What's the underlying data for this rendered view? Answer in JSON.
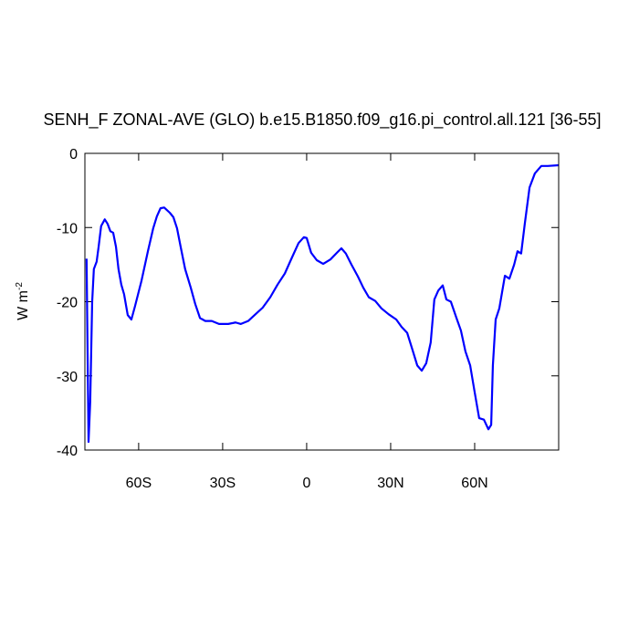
{
  "chart_data": {
    "type": "line",
    "title": "SENH_F ZONAL-AVE (GLO) b.e15.B1850.f09_g16.pi_control.all.121 [36-55]",
    "ylabel": "W m",
    "ylabel_sup": "-2",
    "xlim": [
      -79.2,
      90
    ],
    "ylim": [
      -40,
      0
    ],
    "xticks": [
      {
        "value": -60,
        "label": "60S"
      },
      {
        "value": -30,
        "label": "30S"
      },
      0,
      {
        "value": 30,
        "label": "30N"
      },
      {
        "value": 60,
        "label": "60N"
      }
    ],
    "yticks": [
      0,
      -10,
      -20,
      -30,
      -40
    ],
    "grid": false,
    "series": [
      {
        "name": "SENH_F",
        "color": "#0000ff",
        "x": [
          -78.6,
          -77.9,
          -77.3,
          -76.6,
          -76,
          -75,
          -74.3,
          -73.4,
          -72.1,
          -71.1,
          -70.1,
          -69.1,
          -68.1,
          -67.2,
          -66.2,
          -65.2,
          -63.9,
          -62.6,
          -61.3,
          -59,
          -56.7,
          -54.8,
          -53.5,
          -52.2,
          -50.9,
          -48.9,
          -47.6,
          -46.3,
          -45,
          -43.4,
          -41.4,
          -39.8,
          -38.1,
          -36.2,
          -33.9,
          -31.3,
          -28,
          -25.4,
          -23.5,
          -20.9,
          -18.3,
          -15.7,
          -13,
          -10.4,
          -7.8,
          -5.2,
          -2.9,
          -1,
          0,
          1.6,
          3.6,
          5.9,
          8.5,
          10.8,
          12.4,
          14,
          16,
          18.3,
          20.2,
          22.2,
          24.5,
          26.7,
          29.3,
          32,
          33.9,
          35.9,
          37.8,
          39.5,
          41.1,
          42.7,
          44.3,
          45.6,
          47,
          48.6,
          49.9,
          51.5,
          53.5,
          55.1,
          56.7,
          58.4,
          60,
          61.6,
          63.3,
          64.9,
          65.9,
          66.5,
          67.5,
          68.8,
          69.8,
          70.8,
          72.4,
          74.1,
          75.3,
          76.6,
          77.9,
          79.6,
          81.5,
          83.8,
          86.1,
          90
        ],
        "values": [
          -14.2,
          -38.9,
          -33.5,
          -20,
          -15.6,
          -14.6,
          -12.6,
          -9.8,
          -8.9,
          -9.5,
          -10.5,
          -10.7,
          -12.6,
          -15.6,
          -17.7,
          -19,
          -21.8,
          -22.4,
          -20.6,
          -17.2,
          -13.2,
          -10.1,
          -8.5,
          -7.4,
          -7.3,
          -8,
          -8.6,
          -10.1,
          -12.6,
          -15.6,
          -18.1,
          -20.3,
          -22.2,
          -22.6,
          -22.6,
          -23,
          -23,
          -22.8,
          -23,
          -22.6,
          -21.7,
          -20.8,
          -19.4,
          -17.7,
          -16.2,
          -14,
          -12.1,
          -11.3,
          -11.4,
          -13.4,
          -14.4,
          -14.9,
          -14.3,
          -13.4,
          -12.8,
          -13.5,
          -15,
          -16.6,
          -18.1,
          -19.4,
          -19.9,
          -20.9,
          -21.7,
          -22.4,
          -23.4,
          -24.2,
          -26.5,
          -28.6,
          -29.3,
          -28.3,
          -25.5,
          -19.7,
          -18.5,
          -17.8,
          -19.7,
          -20,
          -22.2,
          -23.9,
          -26.7,
          -28.6,
          -32.2,
          -35.7,
          -35.9,
          -37.2,
          -36.6,
          -28.6,
          -22.4,
          -20.9,
          -18.7,
          -16.5,
          -16.9,
          -15,
          -13.2,
          -13.5,
          -9.5,
          -4.6,
          -2.7,
          -1.7,
          -1.7,
          -1.6
        ]
      }
    ]
  }
}
